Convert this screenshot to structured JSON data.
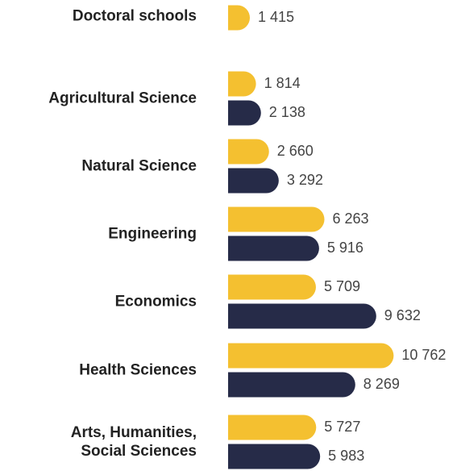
{
  "chart_data": {
    "type": "bar",
    "orientation": "horizontal",
    "categories": [
      "Doctoral schools",
      "Agricultural Science",
      "Natural Science",
      "Engineering",
      "Economics",
      "Health Sciences",
      "Arts, Humanities,\nSocial Sciences"
    ],
    "series": [
      {
        "color": "#f4c030",
        "values": [
          1415,
          1814,
          2660,
          6263,
          5709,
          10762,
          5727
        ],
        "value_labels": [
          "1 415",
          "1 814",
          "2 660",
          "6 263",
          "5 709",
          "10 762",
          "5 727"
        ]
      },
      {
        "color": "#262b48",
        "values": [
          null,
          2138,
          3292,
          5916,
          9632,
          8269,
          5983
        ],
        "value_labels": [
          null,
          "2 138",
          "3 292",
          "5 916",
          "9 632",
          "8 269",
          "5 983"
        ]
      }
    ],
    "xlim": [
      0,
      12000
    ]
  }
}
